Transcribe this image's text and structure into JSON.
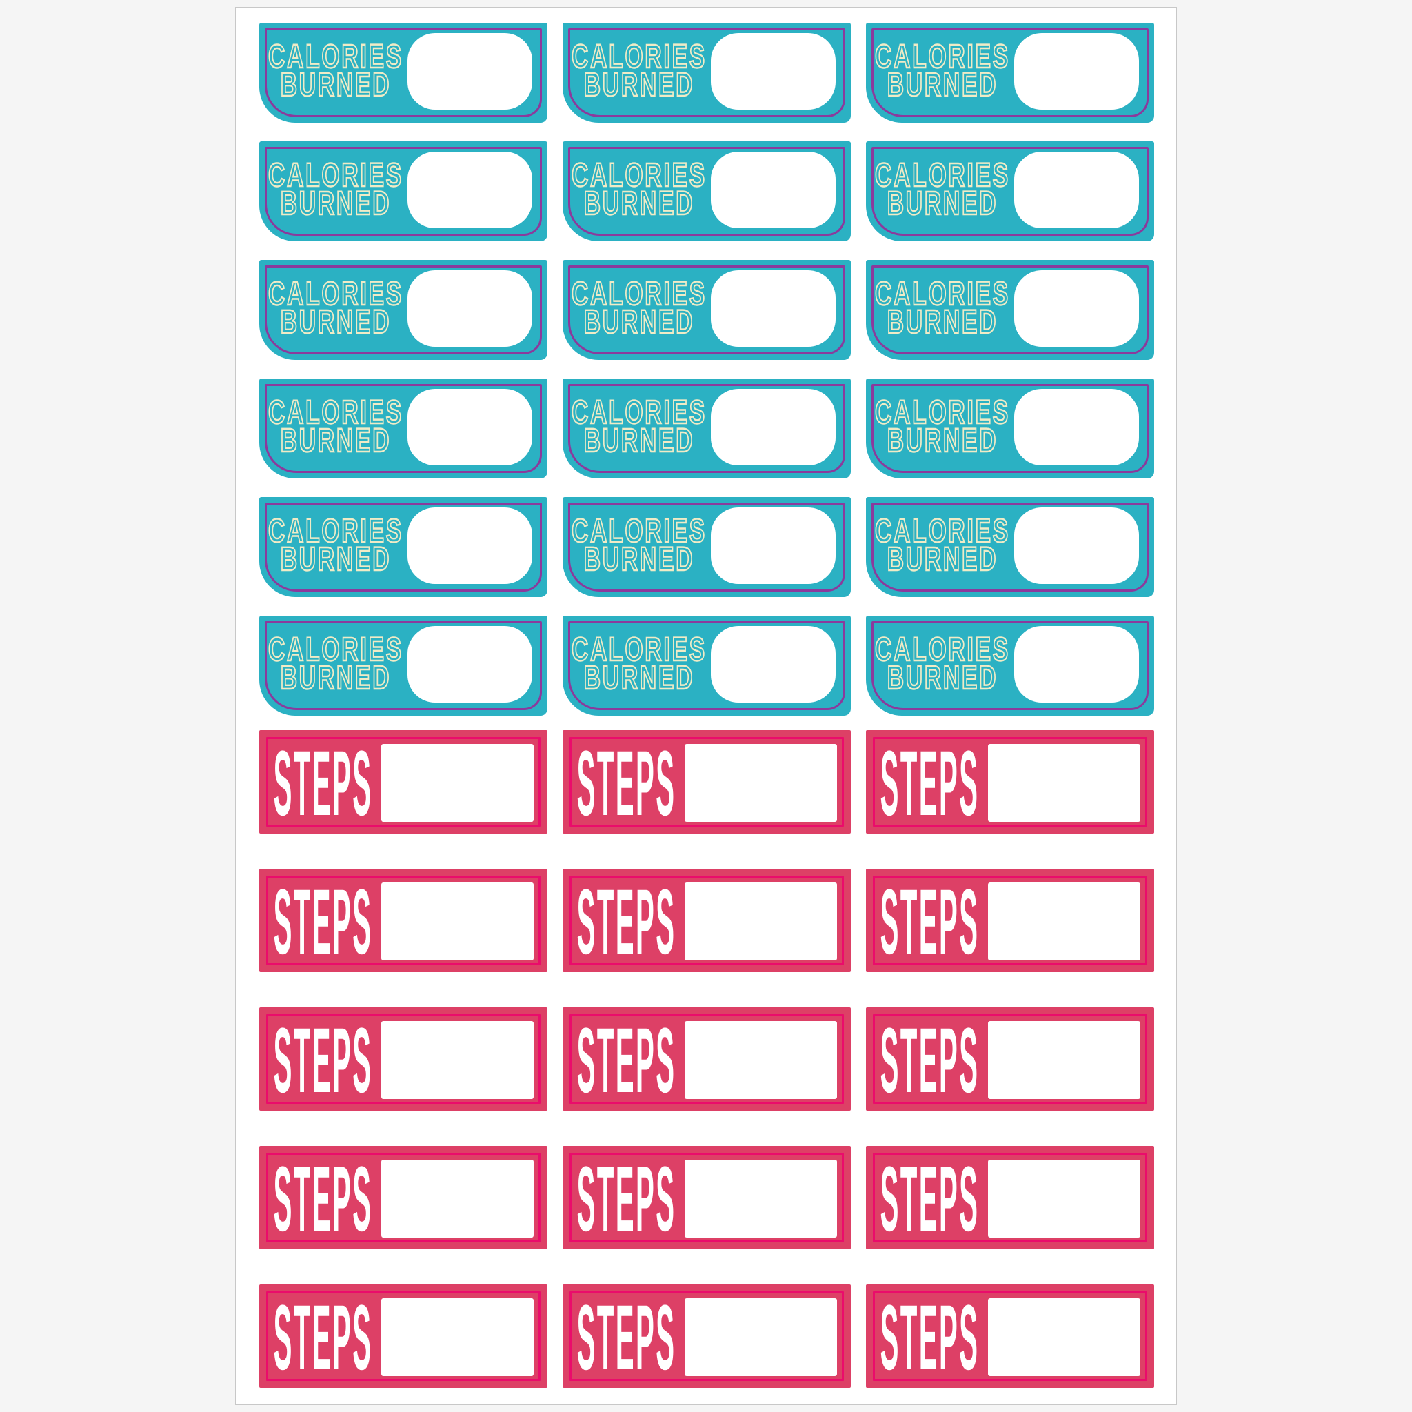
{
  "sheet": {
    "description": "Printable fitness tracker planner sticker sheet",
    "columns": 3,
    "colors": {
      "outer_background": "#f5f5f5",
      "page_background": "#ffffff",
      "page_border": "#c8c8c8"
    }
  },
  "stickers": {
    "calories_burned": {
      "count": 18,
      "rows": 6,
      "line1": "CALORIES",
      "line2": "BURNED",
      "colors": {
        "fill": "#2bb1c3",
        "border_line": "#8b3a9c",
        "text": "#f0ebc6",
        "write_in_area": "#ffffff"
      }
    },
    "steps": {
      "count": 15,
      "rows": 5,
      "label": "STEPS",
      "colors": {
        "fill": "#dd4066",
        "border_line": "#ea0c6b",
        "text": "#ffffff",
        "write_in_area": "#ffffff"
      }
    }
  }
}
